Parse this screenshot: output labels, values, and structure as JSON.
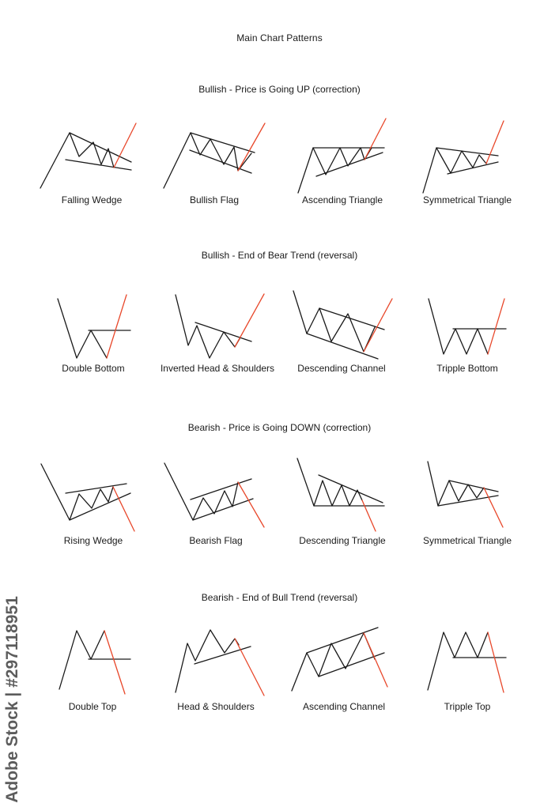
{
  "title": "Main Chart Patterns",
  "colors": {
    "line": "#1a1a1a",
    "breakout": "#e8472a"
  },
  "watermark": "Adobe Stock | #297118951",
  "sections": [
    {
      "title": "Bullish - Price is Going UP (correction)",
      "patterns": [
        "Falling Wedge",
        "Bullish Flag",
        "Ascending Triangle",
        "Symmetrical Triangle"
      ]
    },
    {
      "title": "Bullish - End of Bear Trend (reversal)",
      "patterns": [
        "Double Bottom",
        "Inverted Head & Shoulders",
        "Descending Channel",
        "Tripple Bottom"
      ]
    },
    {
      "title": "Bearish - Price is Going DOWN (correction)",
      "patterns": [
        "Rising Wedge",
        "Bearish Flag",
        "Descending Triangle",
        "Symmetrical Triangle"
      ]
    },
    {
      "title": "Bearish - End of Bull Trend (reversal)",
      "patterns": [
        "Double Top",
        "Head & Shoulders",
        "Ascending Channel",
        "Tripple Top"
      ]
    }
  ]
}
